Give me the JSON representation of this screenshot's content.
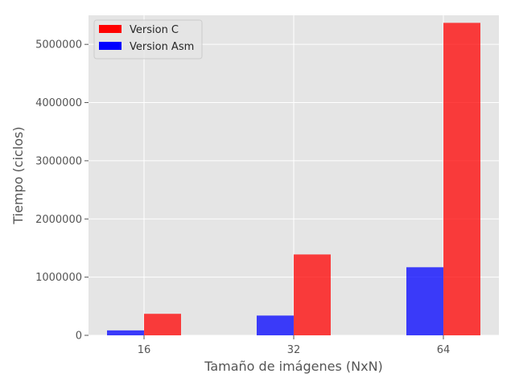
{
  "chart_data": {
    "type": "bar",
    "title": "",
    "xlabel": "Tamaño de imágenes (NxN)",
    "ylabel": "Tiempo (ciclos)",
    "categories": [
      "16",
      "32",
      "64"
    ],
    "series": [
      {
        "name": "Version Asm",
        "color": "#0000ff",
        "values": [
          85000,
          340000,
          1170000
        ]
      },
      {
        "name": "Version C",
        "color": "#ff0000",
        "values": [
          370000,
          1390000,
          5370000
        ]
      }
    ],
    "legend_order": [
      "Version C",
      "Version Asm"
    ],
    "ylim": [
      0,
      5500000
    ],
    "yticks": [
      0,
      1000000,
      2000000,
      3000000,
      4000000,
      5000000
    ],
    "ytick_labels": [
      "0",
      "1000000",
      "2000000",
      "3000000",
      "4000000",
      "5000000"
    ],
    "grid": true,
    "legend_position": "upper-left",
    "background": "#e5e5e5"
  }
}
